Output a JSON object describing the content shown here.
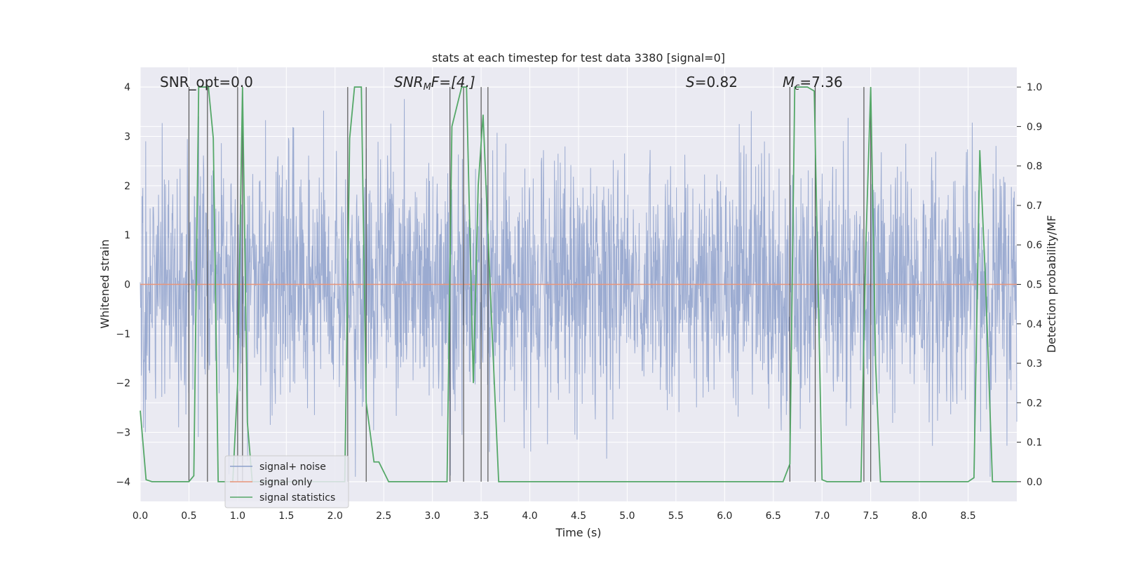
{
  "chart_data": {
    "type": "line",
    "title": "stats at each timestep for test data 3380 [signal=0]",
    "xlabel": "Time (s)",
    "ylabel_left": "Whitened strain",
    "ylabel_right": "Detection probability/MF",
    "xlim": [
      0.0,
      9.0
    ],
    "ylim_left": [
      -4.4,
      4.4
    ],
    "ylim_right": [
      -0.05,
      1.05
    ],
    "x_ticks": [
      "0.0",
      "0.5",
      "1.0",
      "1.5",
      "2.0",
      "2.5",
      "3.0",
      "3.5",
      "4.0",
      "4.5",
      "5.0",
      "5.5",
      "6.0",
      "6.5",
      "7.0",
      "7.5",
      "8.0",
      "8.5"
    ],
    "y_left_ticks": [
      "4",
      "3",
      "2",
      "1",
      "0",
      "−1",
      "−2",
      "−3",
      "−4"
    ],
    "y_right_ticks": [
      "1.0",
      "0.9",
      "0.8",
      "0.7",
      "0.6",
      "0.5",
      "0.4",
      "0.3",
      "0.2",
      "0.1",
      "0.0"
    ],
    "grid": true,
    "legend_position": "bottom-left",
    "annotations": {
      "snr_opt": "SNR_opt=0.0",
      "snr_mf_main": "SNR",
      "snr_mf_sub": "M",
      "snr_mf_rest": "F=[4.]",
      "s_sym": "S",
      "s_rest": "=0.82",
      "mc_sym": "M",
      "mc_sub": "c",
      "mc_rest": "=7.36"
    },
    "series": [
      {
        "name": "signal+ noise",
        "color": "#8da0cb",
        "axis": "left",
        "description": "dense whitened noise trace, amplitude roughly within ±2.5 with peaks near ±3.8"
      },
      {
        "name": "signal only",
        "color": "#e8957a",
        "axis": "left",
        "x": [
          0.0,
          9.0
        ],
        "y": [
          0.0,
          0.0
        ]
      },
      {
        "name": "signal statistics",
        "color": "#55a868",
        "axis": "right",
        "x": [
          0.0,
          0.06,
          0.12,
          0.5,
          0.55,
          0.6,
          0.7,
          0.75,
          0.8,
          0.85,
          0.95,
          1.0,
          1.05,
          1.1,
          1.15,
          1.2,
          2.1,
          2.15,
          2.2,
          2.27,
          2.32,
          2.4,
          2.45,
          2.55,
          2.65,
          3.0,
          3.15,
          3.2,
          3.3,
          3.35,
          3.42,
          3.47,
          3.52,
          3.6,
          3.68,
          6.6,
          6.67,
          6.72,
          6.78,
          6.85,
          6.92,
          7.0,
          7.05,
          7.1,
          7.4,
          7.45,
          7.5,
          7.55,
          7.6,
          7.65,
          8.5,
          8.56,
          8.62,
          8.68,
          8.75,
          9.0
        ],
        "y": [
          0.18,
          0.005,
          0.0,
          0.0,
          0.015,
          1.0,
          1.0,
          0.87,
          0.0,
          0.0,
          0.0,
          0.25,
          1.0,
          0.15,
          0.0,
          0.0,
          0.0,
          0.87,
          1.0,
          1.0,
          0.2,
          0.05,
          0.05,
          0.0,
          0.0,
          0.0,
          0.0,
          0.9,
          1.0,
          1.0,
          0.25,
          0.75,
          0.93,
          0.45,
          0.0,
          0.0,
          0.045,
          1.0,
          1.0,
          1.0,
          0.99,
          0.005,
          0.0,
          0.0,
          0.0,
          0.6,
          1.0,
          0.3,
          0.0,
          0.0,
          0.0,
          0.01,
          0.84,
          0.5,
          0.0,
          0.0
        ]
      }
    ],
    "vertical_markers_s": [
      0.5,
      0.69,
      1.0,
      1.05,
      2.13,
      2.32,
      3.18,
      3.32,
      3.5,
      3.57,
      6.67,
      6.93,
      7.43,
      7.5
    ]
  }
}
